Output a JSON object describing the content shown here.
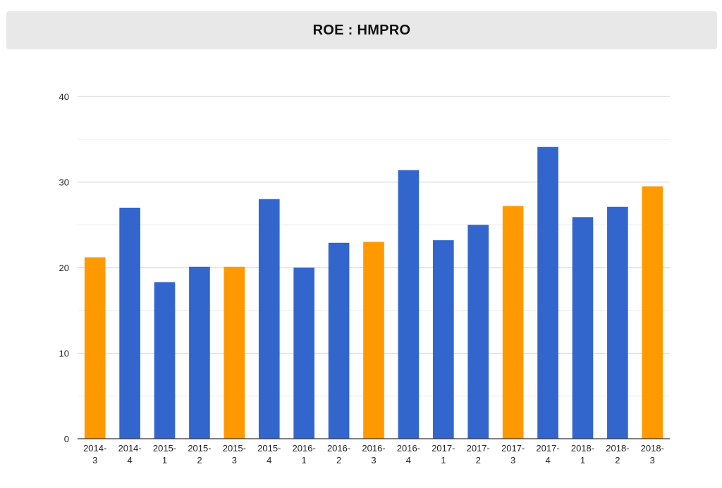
{
  "chart_data": {
    "type": "bar",
    "title": "ROE : HMPRO",
    "xlabel": "",
    "ylabel": "",
    "ylim": [
      0,
      40
    ],
    "yticks": [
      0,
      10,
      20,
      30,
      40
    ],
    "grid": true,
    "legend": "none",
    "colors": {
      "q3": "#ff9900",
      "other": "#3366cc",
      "grid_major": "#cccccc",
      "grid_minor": "#ebebeb",
      "axis": "#333333",
      "tick_label": "#222222",
      "title_bg": "#e8e8e8"
    },
    "categories": [
      "2014-3",
      "2014-4",
      "2015-1",
      "2015-2",
      "2015-3",
      "2015-4",
      "2016-1",
      "2016-2",
      "2016-3",
      "2016-4",
      "2017-1",
      "2017-2",
      "2017-3",
      "2017-4",
      "2018-1",
      "2018-2",
      "2018-3"
    ],
    "values": [
      21.2,
      27.0,
      18.3,
      20.1,
      20.1,
      28.0,
      20.0,
      22.9,
      23.0,
      31.4,
      23.2,
      25.0,
      27.2,
      34.1,
      25.9,
      27.1,
      29.5
    ]
  }
}
